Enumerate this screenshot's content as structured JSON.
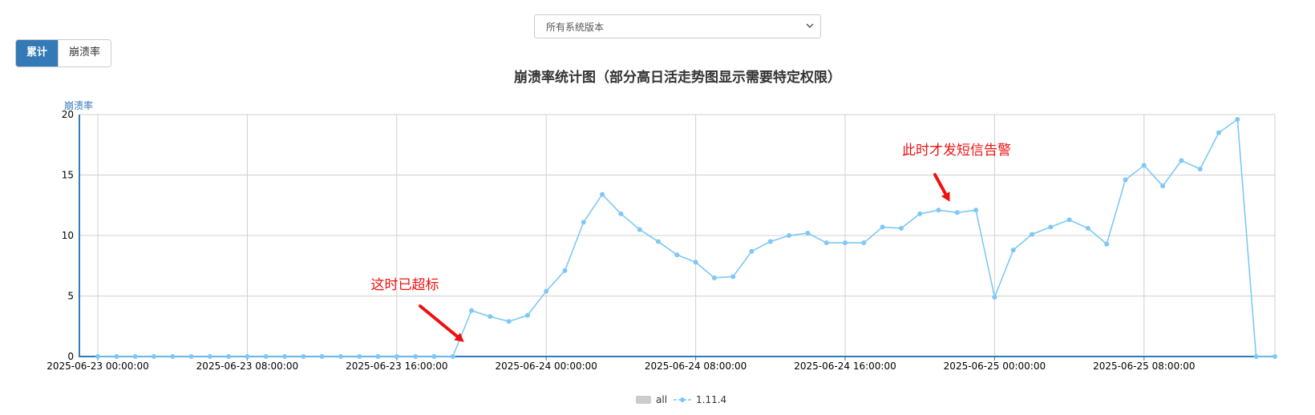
{
  "selector": {
    "value": "所有系统版本"
  },
  "toggle": {
    "cumulative_label": "累计",
    "crash_rate_label": "崩溃率"
  },
  "colors": {
    "line": "#7ec8f5",
    "axis": "#337ab7",
    "annotation": "#ee1111",
    "grid": "#d0d0d0",
    "legend_all": "#cccccc",
    "toggle_active": "#337ab7"
  },
  "chart_data": {
    "type": "line",
    "title": "崩溃率统计图（部分高日活走势图显示需要特定权限）",
    "ylabel": "崩溃率",
    "xlabel": "",
    "ylim": [
      0,
      20
    ],
    "yticks": [
      0,
      5,
      10,
      15,
      20
    ],
    "x_start": "2025-06-23 00:00:00",
    "x_step_hours": 1,
    "xticks": [
      "2025-06-23 00:00:00",
      "2025-06-23 08:00:00",
      "2025-06-23 16:00:00",
      "2025-06-24 00:00:00",
      "2025-06-24 08:00:00",
      "2025-06-24 16:00:00",
      "2025-06-25 00:00:00",
      "2025-06-25 08:00:00"
    ],
    "grid": true,
    "legend": {
      "placement": "bottom-center",
      "entries": [
        "all",
        "1.11.4"
      ]
    },
    "series": [
      {
        "name": "all",
        "color": "#cccccc",
        "values": []
      },
      {
        "name": "1.11.4",
        "color": "#7ec8f5",
        "values": [
          0,
          0,
          0,
          0,
          0,
          0,
          0,
          0,
          0,
          0,
          0,
          0,
          0,
          0,
          0,
          0,
          0,
          0,
          0,
          0,
          3.8,
          3.3,
          2.9,
          3.4,
          5.4,
          7.1,
          11.1,
          13.4,
          11.8,
          10.5,
          9.5,
          8.4,
          7.8,
          6.5,
          6.6,
          8.7,
          9.5,
          10.0,
          10.2,
          9.4,
          9.4,
          9.4,
          10.7,
          10.6,
          11.8,
          12.1,
          11.9,
          12.1,
          4.9,
          8.8,
          10.1,
          10.7,
          11.3,
          10.6,
          9.3,
          14.6,
          15.8,
          14.1,
          16.2,
          15.5,
          18.5,
          19.6,
          0,
          0
        ]
      }
    ],
    "annotations": [
      {
        "text": "这时已超标",
        "arrow_to_x": 19.6,
        "arrow_to_y": 1.2
      },
      {
        "text": "此时才发短信告警",
        "arrow_to_x": 45.6,
        "arrow_to_y": 12.8
      }
    ]
  }
}
